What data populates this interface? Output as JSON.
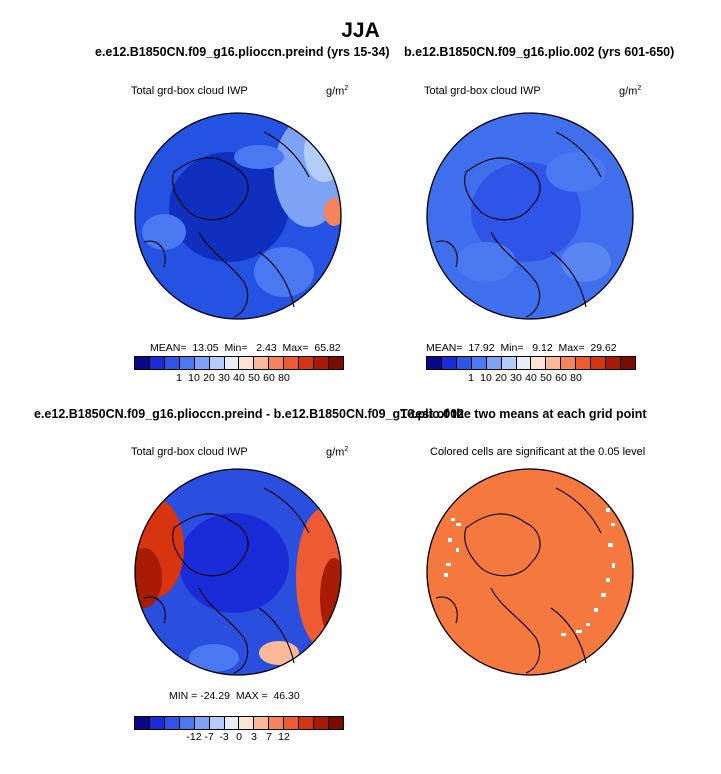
{
  "main_title": "JJA",
  "palette": [
    "#08088a",
    "#1a2bd8",
    "#2f55e8",
    "#4a78f0",
    "#7ea2f5",
    "#b3cdfa",
    "#e6eefc",
    "#fde3d4",
    "#fbb99a",
    "#f6845b",
    "#ee5a32",
    "#d73410",
    "#a81c05",
    "#7a0a02"
  ],
  "chart_data": [
    {
      "type": "heatmap",
      "panel": "top-left",
      "title": "e.e12.B1850CN.f09_g16.plioccn.preind (yrs 15-34)",
      "variable": "Total grd-box cloud IWP",
      "units_base": "g/m",
      "units_exp": "2",
      "stats": {
        "mean_label": "MEAN=",
        "mean": "13.05",
        "min_label": "Min=",
        "min": "2.43",
        "max_label": "Max=",
        "max": "65.82"
      },
      "colorbar_ticks": [
        "1",
        "10",
        "20",
        "30",
        "40",
        "50",
        "60",
        "80"
      ],
      "dominant_color": "#1a3fd6"
    },
    {
      "type": "heatmap",
      "panel": "top-right",
      "title": "b.e12.B1850CN.f09_g16.plio.002 (yrs 601-650)",
      "variable": "Total grd-box cloud IWP",
      "units_base": "g/m",
      "units_exp": "2",
      "stats": {
        "mean_label": "MEAN=",
        "mean": "17.92",
        "min_label": "Min=",
        "min": "9.12",
        "max_label": "Max=",
        "max": "29.62"
      },
      "colorbar_ticks": [
        "1",
        "10",
        "20",
        "30",
        "40",
        "50",
        "60",
        "80"
      ],
      "dominant_color": "#3f6fec"
    },
    {
      "type": "heatmap",
      "panel": "bottom-left",
      "title": "e.e12.B1850CN.f09_g16.plioccn.preind - b.e12.B1850CN.f09_g16.plio.002",
      "variable": "Total grd-box cloud IWP",
      "units_base": "g/m",
      "units_exp": "2",
      "stats_text": "MIN = -24.29  MAX =  46.30",
      "min": -24.29,
      "max": 46.3,
      "colorbar_ticks": [
        "-12",
        "-7",
        "-3",
        "0",
        "3",
        "7",
        "12"
      ],
      "dominant_color": "#2a4fdf"
    },
    {
      "type": "heatmap",
      "panel": "bottom-right",
      "title": "T-test of the two means at each grid point",
      "subtitle": "Colored cells are significant at the 0.05 level",
      "dominant_color": "#f5793e"
    }
  ]
}
